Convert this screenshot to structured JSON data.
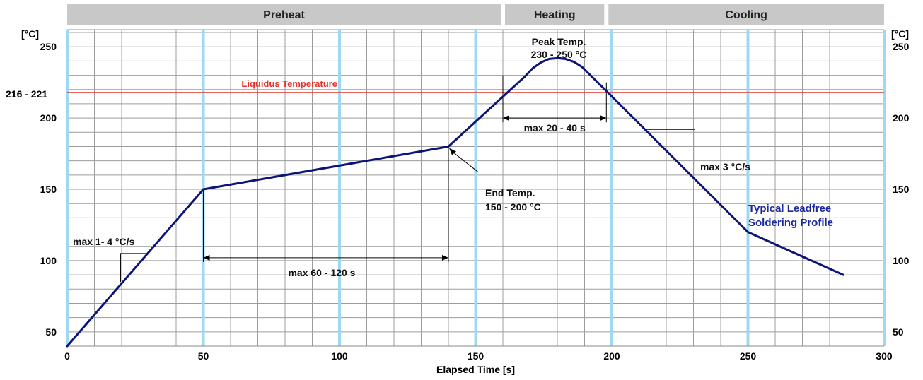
{
  "chart_data": {
    "type": "line",
    "title": "",
    "xlabel": "Elapsed Time [s]",
    "ylabel_left": "[°C]",
    "ylabel_right": "[°C]",
    "xlim": [
      0,
      300
    ],
    "ylim": [
      40,
      262
    ],
    "x_ticks": [
      0,
      50,
      100,
      150,
      200,
      250,
      300
    ],
    "x_tick_labels": [
      "0",
      "50",
      "100",
      "150",
      "200",
      "250",
      "300"
    ],
    "y_ticks": [
      50,
      100,
      150,
      200,
      250
    ],
    "y_tick_labels": [
      "50",
      "100",
      "150",
      "200",
      "250"
    ],
    "grid": true,
    "phases": [
      {
        "label": "Preheat",
        "x_start": 0,
        "x_end": 160
      },
      {
        "label": "Heating",
        "x_start": 160,
        "x_end": 198
      },
      {
        "label": "Cooling",
        "x_start": 198,
        "x_end": 300
      }
    ],
    "liquidus": {
      "y": 218,
      "label": "Liquidus Temperature",
      "tick_label": "216 - 221"
    },
    "series": [
      {
        "name": "Typical Leadfree Soldering Profile",
        "points": [
          [
            0,
            40
          ],
          [
            50,
            150
          ],
          [
            140,
            180
          ],
          [
            168,
            229
          ],
          [
            171,
            235
          ],
          [
            174,
            239
          ],
          [
            177,
            241.5
          ],
          [
            180,
            242
          ],
          [
            183,
            241.5
          ],
          [
            186,
            239.5
          ],
          [
            189,
            236
          ],
          [
            198,
            219
          ],
          [
            250,
            120
          ],
          [
            285,
            90
          ]
        ]
      }
    ],
    "annotations": {
      "peak": {
        "line1": "Peak Temp.",
        "line2": "230 - 250 °C"
      },
      "end_temp": {
        "line1": "End Temp.",
        "line2": "150 - 200 °C"
      },
      "ramp_up": {
        "label": "max 1- 4 °C/s"
      },
      "preheat_time": {
        "label": "max 60 - 120 s",
        "x_start": 50,
        "x_end": 140,
        "y": 102
      },
      "liquidus_time": {
        "label": "max 20 - 40 s",
        "x_start": 160,
        "x_end": 198,
        "y": 200
      },
      "cooling_rate": {
        "label": "max 3 °C/s"
      }
    },
    "colors": {
      "profile": "#0d1478",
      "liquidus": "#e8302a",
      "phase_grid": "#9fd8f0",
      "minor_grid": "#9c9c9c",
      "header": "#c8c8c8",
      "profile_label": "#1a2a9c"
    }
  }
}
